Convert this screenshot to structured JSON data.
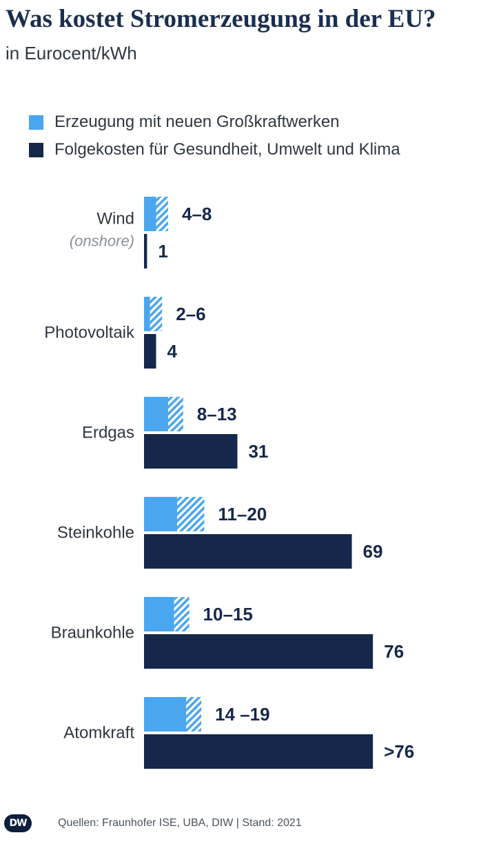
{
  "chart_data": {
    "type": "bar",
    "orientation": "horizontal",
    "title": "Was kostet Stromerzeugung in der EU?",
    "subtitle": "in Eurocent/kWh",
    "legend": [
      {
        "name": "Erzeugung mit neuen Großkraftwerken",
        "color": "#4aa6ee"
      },
      {
        "name": "Folgekosten für Gesundheit, Umwelt und Klima",
        "color": "#15284b"
      }
    ],
    "categories": [
      {
        "label": "Wind",
        "sublabel": "(onshore)",
        "generation": {
          "min": 4,
          "max": 8,
          "label": "4–8"
        },
        "external": {
          "value": 1,
          "label": "1"
        }
      },
      {
        "label": "Photovoltaik",
        "sublabel": "",
        "generation": {
          "min": 2,
          "max": 6,
          "label": "2–6"
        },
        "external": {
          "value": 4,
          "label": "4"
        }
      },
      {
        "label": "Erdgas",
        "sublabel": "",
        "generation": {
          "min": 8,
          "max": 13,
          "label": "8–13"
        },
        "external": {
          "value": 31,
          "label": "31"
        }
      },
      {
        "label": "Steinkohle",
        "sublabel": "",
        "generation": {
          "min": 11,
          "max": 20,
          "label": "11–20"
        },
        "external": {
          "value": 69,
          "label": "69"
        }
      },
      {
        "label": "Braunkohle",
        "sublabel": "",
        "generation": {
          "min": 10,
          "max": 15,
          "label": "10–15"
        },
        "external": {
          "value": 76,
          "label": "76"
        }
      },
      {
        "label": "Atomkraft",
        "sublabel": "",
        "generation": {
          "min": 14,
          "max": 19,
          "label": "14 –19"
        },
        "external": {
          "value": 76,
          "label": ">76"
        }
      }
    ],
    "xlim": [
      0,
      76
    ]
  },
  "footer": {
    "logo": "DW",
    "source": "Quellen: Fraunhofer ISE, UBA, DIW | Stand: 2021"
  },
  "colors": {
    "generation": "#4aa6ee",
    "external": "#15284b",
    "title": "#1a2f4f"
  }
}
